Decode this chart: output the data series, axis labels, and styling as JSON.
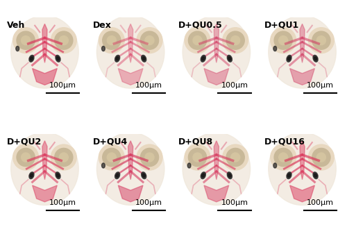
{
  "labels": [
    "Veh",
    "Dex",
    "D+QU0.5",
    "D+QU1",
    "D+QU2",
    "D+QU4",
    "D+QU8",
    "D+QU16"
  ],
  "nrows": 2,
  "ncols": 4,
  "scale_bar_text": "100μm",
  "label_fontsize": 9,
  "scalebar_fontsize": 8,
  "label_color": "black",
  "background_color": "#f5f0eb",
  "figure_bg": "white",
  "border_color": "black",
  "border_linewidth": 0.8,
  "scalebar_color": "black",
  "scalebar_linewidth": 1.5,
  "figsize": [
    5.0,
    3.37
  ],
  "dpi": 100,
  "hspace": 0.04,
  "wspace": 0.04
}
